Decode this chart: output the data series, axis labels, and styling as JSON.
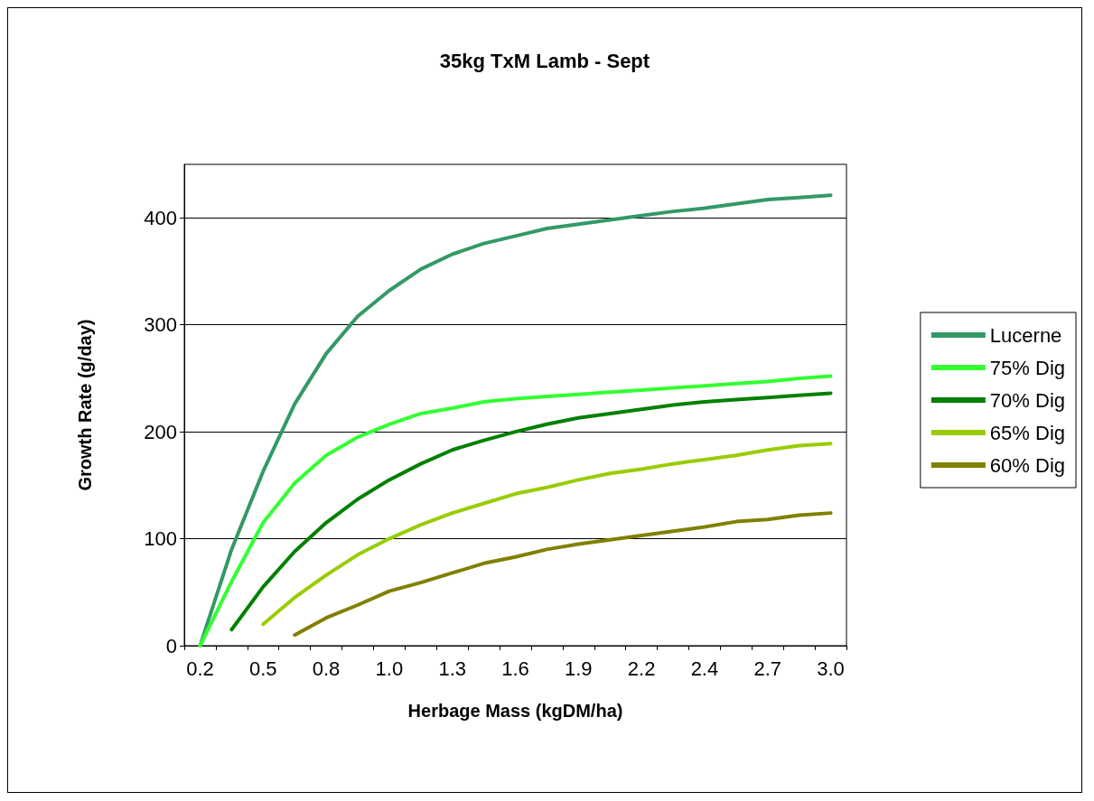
{
  "chart_data": {
    "type": "line",
    "title": "35kg TxM Lamb - Sept",
    "xlabel": "Herbage Mass (kgDM/ha)",
    "ylabel": "Growth Rate (g/day)",
    "categories": [
      "0.2",
      null,
      "0.5",
      null,
      "0.8",
      null,
      "1.0",
      null,
      "1.3",
      null,
      "1.6",
      null,
      "1.9",
      null,
      "2.2",
      null,
      "2.4",
      null,
      "2.7",
      null,
      "3.0"
    ],
    "series": [
      {
        "name": "Lucerne",
        "color": "#339966",
        "values": [
          0,
          90,
          163,
          226,
          273,
          308,
          332,
          352,
          366,
          376,
          383,
          390,
          394,
          398,
          402,
          406,
          409,
          413,
          417,
          419,
          421
        ]
      },
      {
        "name": "75% Dig",
        "color": "#33ff33",
        "values": [
          0,
          60,
          115,
          152,
          178,
          195,
          207,
          217,
          222,
          228,
          231,
          233,
          235,
          237,
          239,
          241,
          243,
          245,
          247,
          250,
          252
        ]
      },
      {
        "name": "70% Dig",
        "color": "#008000",
        "values": [
          null,
          15,
          55,
          88,
          115,
          137,
          155,
          170,
          183,
          192,
          200,
          207,
          213,
          217,
          221,
          225,
          228,
          230,
          232,
          234,
          236
        ]
      },
      {
        "name": "65% Dig",
        "color": "#99cc00",
        "values": [
          null,
          null,
          20,
          45,
          66,
          85,
          100,
          113,
          124,
          133,
          142,
          148,
          155,
          161,
          165,
          170,
          174,
          178,
          183,
          187,
          189
        ]
      },
      {
        "name": "60% Dig",
        "color": "#808000",
        "values": [
          null,
          null,
          null,
          10,
          26,
          38,
          51,
          59,
          68,
          77,
          83,
          90,
          95,
          99,
          103,
          107,
          111,
          116,
          118,
          122,
          124
        ]
      }
    ],
    "ylim": [
      0,
      450
    ],
    "yticks": [
      0,
      100,
      200,
      300,
      400
    ],
    "grid": "y",
    "legend": "right",
    "marker": "none",
    "line_style": "solid"
  }
}
